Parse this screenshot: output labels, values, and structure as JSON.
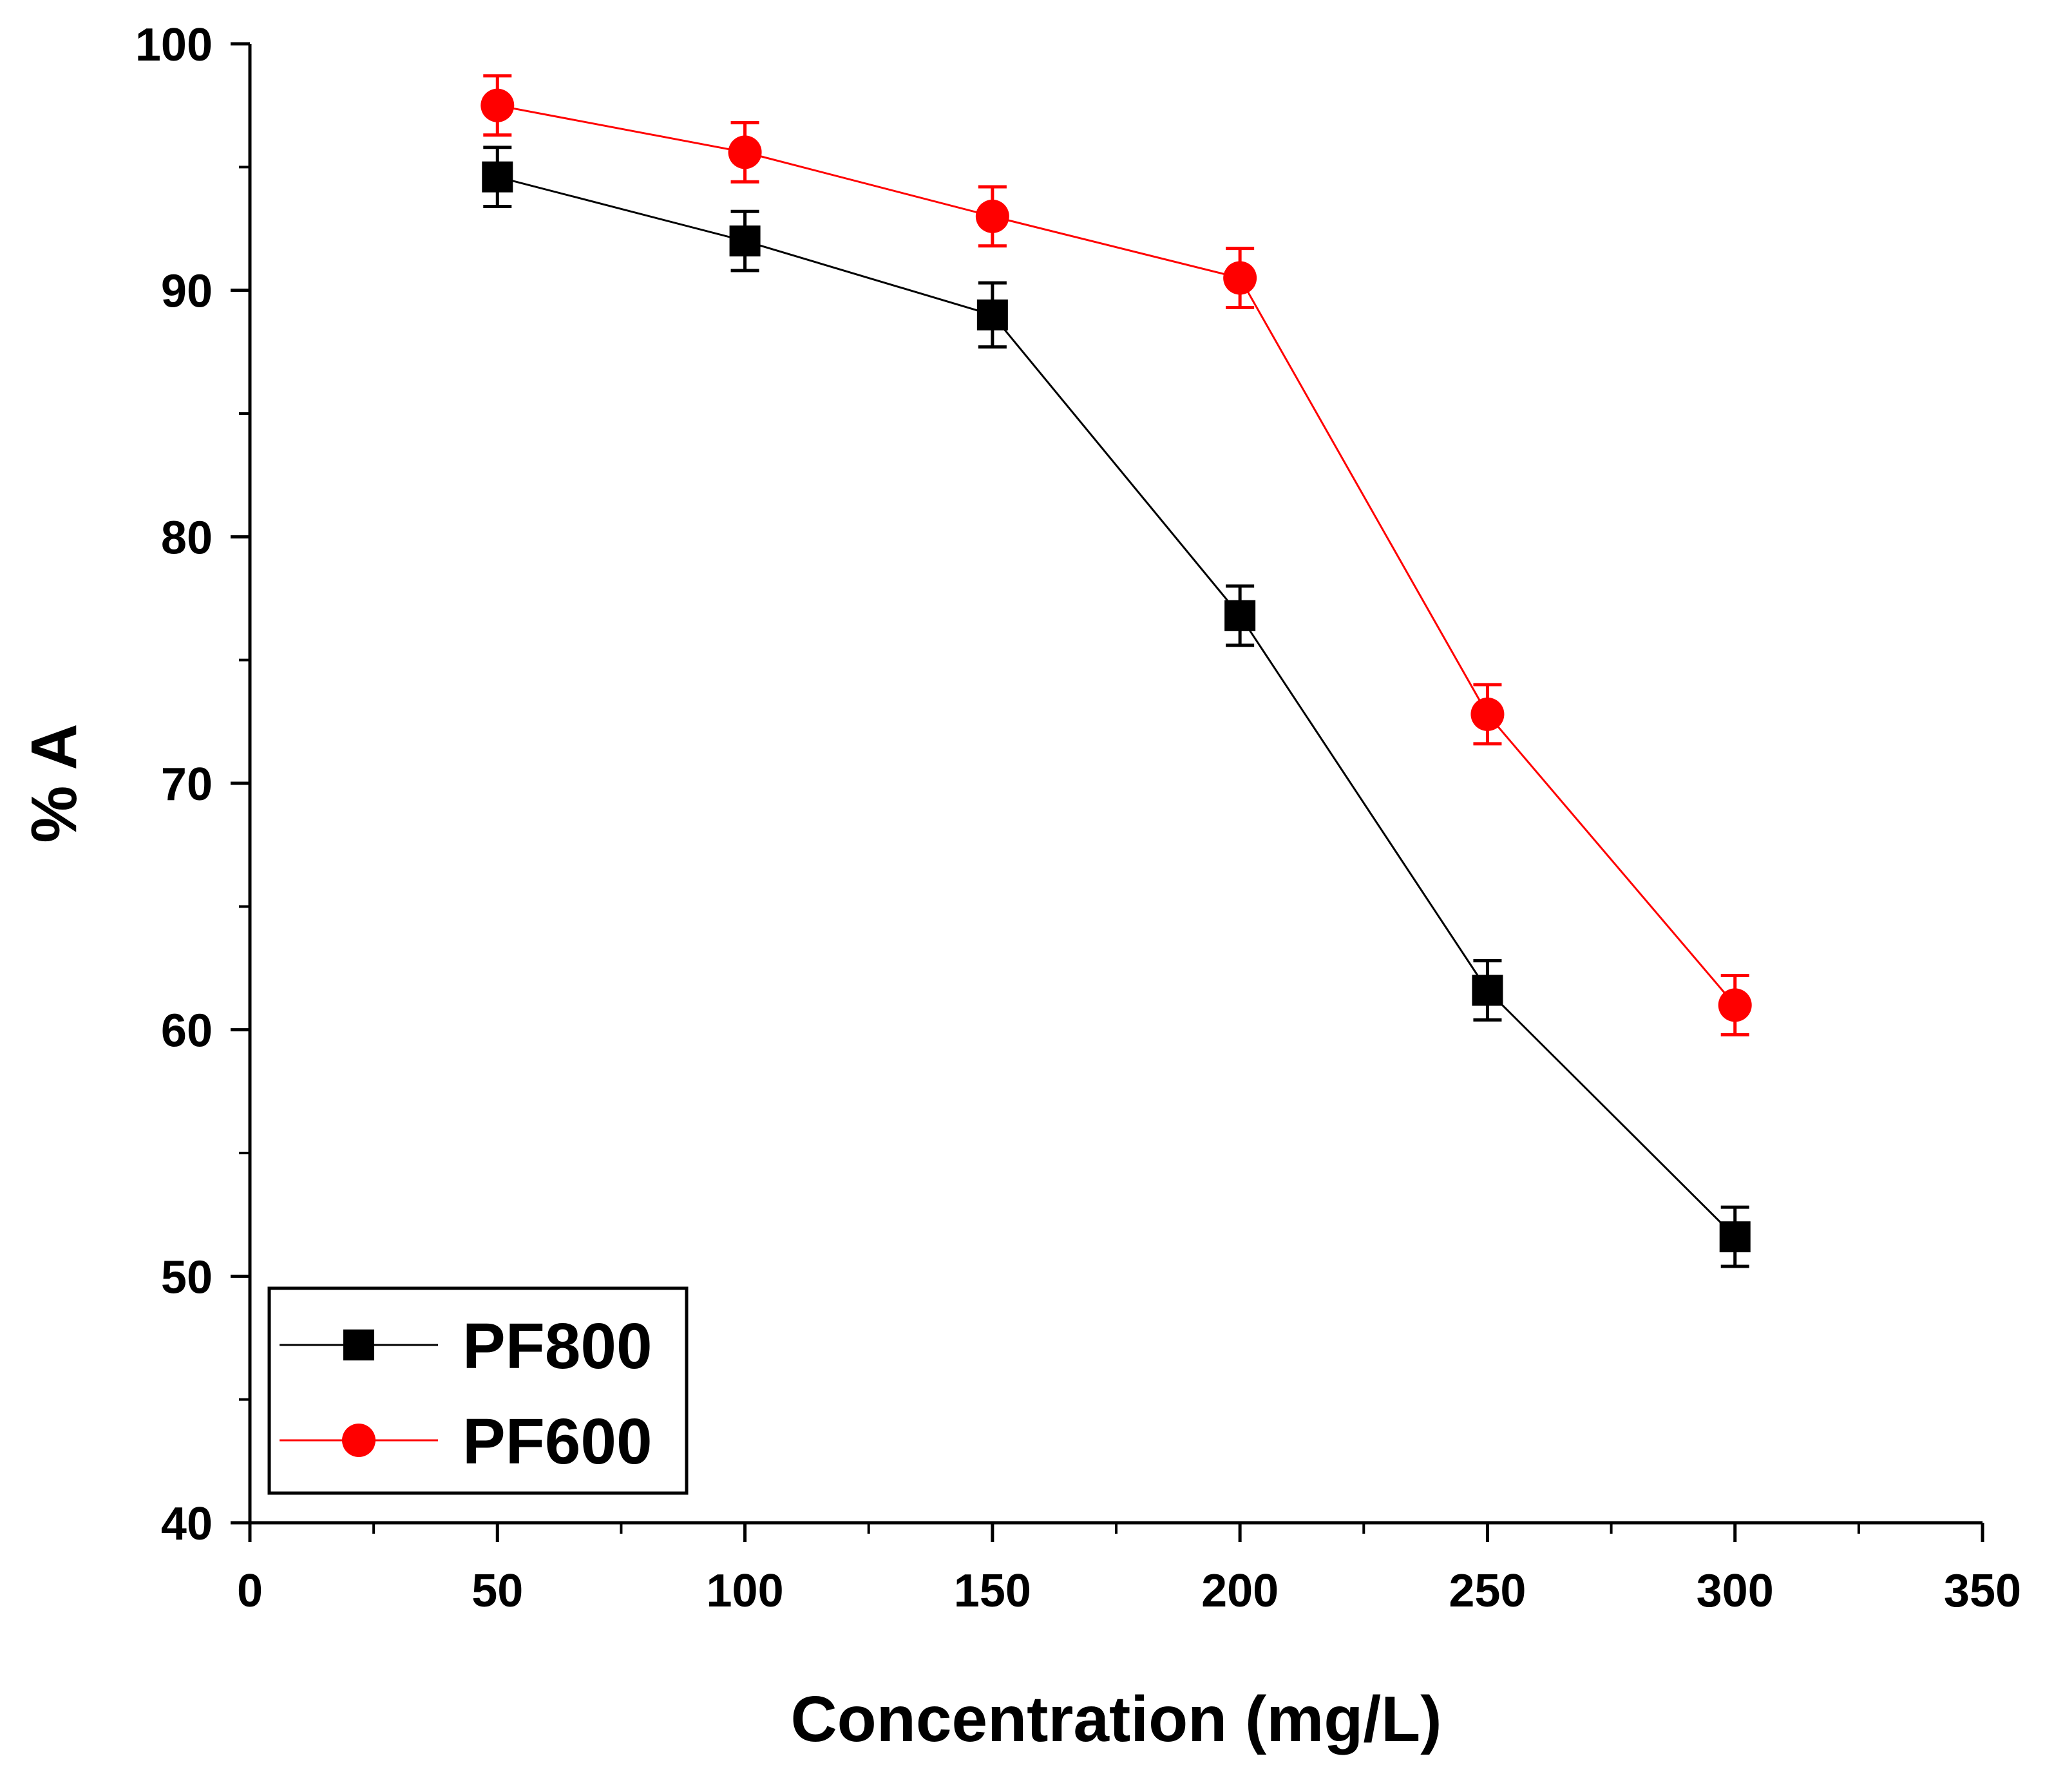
{
  "chart_data": {
    "type": "line",
    "title": "",
    "xlabel": "Concentration (mg/L)",
    "ylabel": "% A",
    "xlim": [
      0,
      350
    ],
    "ylim": [
      40,
      100
    ],
    "xticks": [
      0,
      50,
      100,
      150,
      200,
      250,
      300,
      350
    ],
    "yticks": [
      40,
      50,
      60,
      70,
      80,
      90,
      100
    ],
    "xtick_labels": [
      "0",
      "50",
      "100",
      "150",
      "200",
      "250",
      "300",
      "350"
    ],
    "ytick_labels": [
      "40",
      "50",
      "60",
      "70",
      "80",
      "90",
      "100"
    ],
    "grid": false,
    "legend_position": "bottom-left",
    "x": [
      50,
      100,
      150,
      200,
      250,
      300
    ],
    "series": [
      {
        "name": "PF800",
        "color": "#000000",
        "marker": "square",
        "values": [
          94.6,
          92.0,
          89.0,
          76.8,
          61.6,
          51.6
        ],
        "errors": [
          1.2,
          1.2,
          1.3,
          1.2,
          1.2,
          1.2
        ]
      },
      {
        "name": "PF600",
        "color": "#ff0000",
        "marker": "circle",
        "values": [
          97.5,
          95.6,
          93.0,
          90.5,
          72.8,
          61.0
        ],
        "errors": [
          1.2,
          1.2,
          1.2,
          1.2,
          1.2,
          1.2
        ]
      }
    ]
  }
}
